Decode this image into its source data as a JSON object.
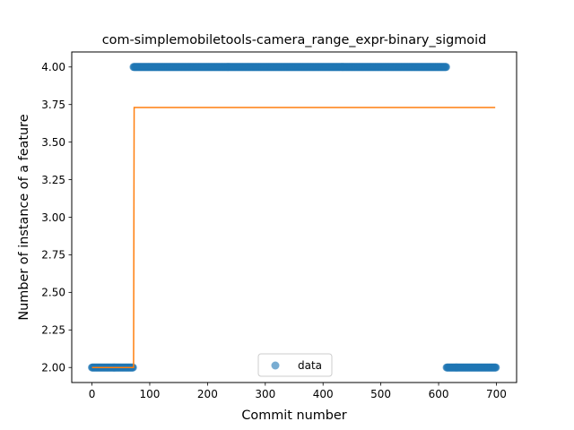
{
  "chart_data": {
    "type": "scatter",
    "title": "com-simplemobiletools-camera_range_expr-binary_sigmoid",
    "xlabel": "Commit number",
    "ylabel": "Number of instance of a feature",
    "xlim": [
      -35,
      735
    ],
    "ylim": [
      1.9,
      4.1
    ],
    "xticks": [
      0,
      100,
      200,
      300,
      400,
      500,
      600,
      700
    ],
    "yticks": [
      2.0,
      2.25,
      2.5,
      2.75,
      3.0,
      3.25,
      3.5,
      3.75,
      4.0
    ],
    "xtick_labels": [
      "0",
      "100",
      "200",
      "300",
      "400",
      "500",
      "600",
      "700"
    ],
    "ytick_labels": [
      "2.00",
      "2.25",
      "2.50",
      "2.75",
      "3.00",
      "3.25",
      "3.50",
      "3.75",
      "4.00"
    ],
    "grid": false,
    "legend": {
      "position": "lower center",
      "entries": [
        "data"
      ]
    },
    "series": [
      {
        "name": "data",
        "kind": "scatter",
        "color": "#1f77b4",
        "segments": [
          {
            "x_start": 0,
            "x_end": 71,
            "y": 2
          },
          {
            "x_start": 72,
            "x_end": 613,
            "y": 4
          },
          {
            "x_start": 614,
            "x_end": 699,
            "y": 2
          }
        ]
      },
      {
        "kind": "line",
        "color": "#ff7f0e",
        "points": [
          [
            0,
            2.0
          ],
          [
            72,
            2.0
          ],
          [
            73,
            3.73
          ],
          [
            698,
            3.73
          ]
        ]
      }
    ]
  }
}
